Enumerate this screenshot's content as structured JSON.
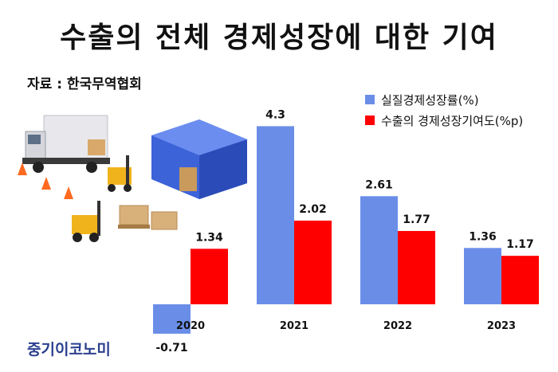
{
  "title": "수출의 전체 경제성장에 대한 기여",
  "source": "자료 : 한국무역협회",
  "brand": "중기이코노미",
  "chart_data": {
    "type": "bar",
    "categories": [
      "2020",
      "2021",
      "2022",
      "2023"
    ],
    "series": [
      {
        "name": "실질경제성장률(%)",
        "values": [
          -0.71,
          4.3,
          2.61,
          1.36
        ],
        "color": "#6a8ee8"
      },
      {
        "name": "수출의 경제성장기여도(%p)",
        "values": [
          1.34,
          2.02,
          1.77,
          1.17
        ],
        "color": "#ff0000"
      }
    ],
    "value_labels": [
      [
        "-0.71",
        "4.3",
        "2.61",
        "1.36"
      ],
      [
        "1.34",
        "2.02",
        "1.77",
        "1.17"
      ]
    ],
    "legend_position": "top-right",
    "grid": false
  }
}
